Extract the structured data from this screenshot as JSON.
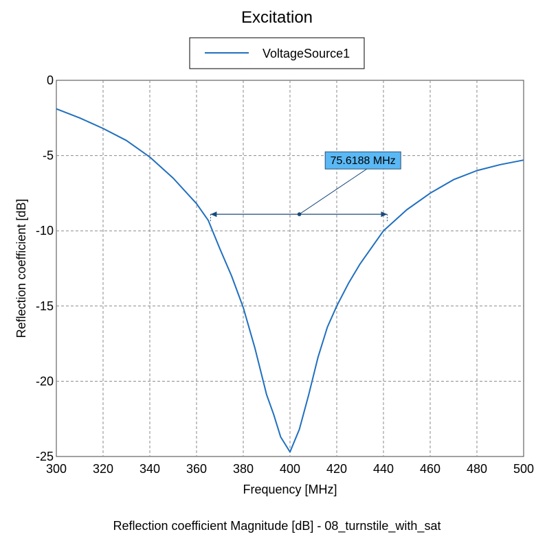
{
  "chart_data": {
    "type": "line",
    "title": "Excitation",
    "caption": "Reflection coefficient Magnitude [dB] - 08_turnstile_with_sat",
    "xlabel": "Frequency [MHz]",
    "ylabel": "Reflection coefficient [dB]",
    "xlim": [
      300,
      500
    ],
    "ylim": [
      -25,
      0
    ],
    "x_ticks": [
      300,
      320,
      340,
      360,
      380,
      400,
      420,
      440,
      460,
      480,
      500
    ],
    "y_ticks": [
      0,
      -5,
      -10,
      -15,
      -20,
      -25
    ],
    "grid": true,
    "legend": "top-center",
    "series": [
      {
        "name": "VoltageSource1",
        "color": "#1f6fbf",
        "x": [
          300,
          310,
          320,
          330,
          340,
          350,
          360,
          365,
          370,
          375,
          380,
          385,
          390,
          393,
          396,
          400,
          404,
          408,
          412,
          416,
          420,
          425,
          430,
          440,
          450,
          460,
          470,
          480,
          490,
          500
        ],
        "y": [
          -1.9,
          -2.5,
          -3.2,
          -4.0,
          -5.1,
          -6.5,
          -8.2,
          -9.3,
          -11.2,
          -13.0,
          -15.1,
          -17.8,
          -20.9,
          -22.2,
          -23.7,
          -24.7,
          -23.2,
          -20.9,
          -18.4,
          -16.4,
          -15.0,
          -13.5,
          -12.2,
          -10.0,
          -8.6,
          -7.5,
          -6.6,
          -6.0,
          -5.6,
          -5.3
        ]
      }
    ],
    "annotation": {
      "label": "75.6188 MHz",
      "x_start": 366.0,
      "x_end": 441.6,
      "y": -8.9,
      "point_x": 404.0,
      "label_x": 423.0,
      "label_y": -5.3,
      "fill": "#5ab8f5"
    }
  }
}
